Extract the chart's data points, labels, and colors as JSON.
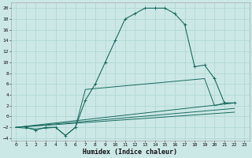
{
  "title": "",
  "xlabel": "Humidex (Indice chaleur)",
  "bg_color": "#cce8e6",
  "grid_color": "#b0d8d5",
  "line_color": "#1a6b60",
  "xlim": [
    -0.5,
    23.5
  ],
  "ylim": [
    -4.5,
    21
  ],
  "xticks": [
    0,
    1,
    2,
    3,
    4,
    5,
    6,
    7,
    8,
    9,
    10,
    11,
    12,
    13,
    14,
    15,
    16,
    17,
    18,
    19,
    20,
    21,
    22,
    23
  ],
  "yticks": [
    -4,
    -2,
    0,
    2,
    4,
    6,
    8,
    10,
    12,
    14,
    16,
    18,
    20
  ],
  "series": [
    {
      "x": [
        1,
        2,
        3,
        4,
        5,
        6,
        7,
        8,
        9,
        10,
        11,
        12,
        13,
        14,
        15,
        16,
        17,
        18,
        19,
        20,
        21,
        22
      ],
      "y": [
        -2,
        -2.5,
        -2,
        -2,
        -3.5,
        -2,
        3,
        6,
        10,
        14,
        18,
        19,
        20,
        20,
        20,
        19,
        17,
        9.2,
        9.5,
        7,
        2.5,
        2.5
      ],
      "marker": "+"
    },
    {
      "x": [
        0,
        2,
        4,
        5,
        6,
        7,
        19,
        20,
        21,
        22
      ],
      "y": [
        -2,
        -2.3,
        -2,
        -3.5,
        -2,
        5,
        7,
        2,
        2.5,
        2.5
      ],
      "marker": null
    },
    {
      "x": [
        0,
        22
      ],
      "y": [
        -2,
        2.5
      ],
      "marker": null
    },
    {
      "x": [
        0,
        22
      ],
      "y": [
        -2,
        1.5
      ],
      "marker": null
    },
    {
      "x": [
        0,
        22
      ],
      "y": [
        -2,
        0.8
      ],
      "marker": null
    }
  ]
}
